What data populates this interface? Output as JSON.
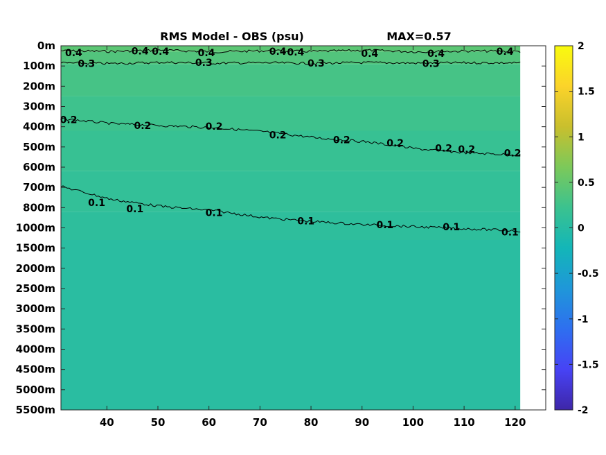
{
  "chart_data": {
    "type": "heatmap",
    "title": "RMS Model - OBS (psu)",
    "annotation": "MAX=0.57",
    "x_ticks": [
      "40",
      "50",
      "60",
      "70",
      "80",
      "90",
      "100",
      "110",
      "120"
    ],
    "x_tick_values": [
      40,
      50,
      60,
      70,
      80,
      90,
      100,
      110,
      120
    ],
    "xlim": [
      31,
      126
    ],
    "data_xmax": 121,
    "y_ticks": [
      "0m",
      "100m",
      "200m",
      "300m",
      "400m",
      "500m",
      "600m",
      "700m",
      "800m",
      "1000m",
      "1500m",
      "2000m",
      "2500m",
      "3000m",
      "3500m",
      "4000m",
      "4500m",
      "5000m",
      "5500m"
    ],
    "colorbar": {
      "ticks": [
        "2",
        "1.5",
        "1",
        "0.5",
        "0",
        "-0.5",
        "-1",
        "-1.5",
        "-2"
      ],
      "tick_values": [
        2,
        1.5,
        1,
        0.5,
        0,
        -0.5,
        -1,
        -1.5,
        -2
      ],
      "range": [
        -2,
        2
      ],
      "colormap": "parula",
      "colors": [
        "#3e26a8",
        "#4743f5",
        "#2e6ff0",
        "#1f97d9",
        "#13b6b8",
        "#3bc28f",
        "#7cc95a",
        "#c9bf2d",
        "#fbd32a",
        "#f9fb0e"
      ]
    },
    "contours": [
      {
        "level": 0.4,
        "depth_index": [
          0.25,
          0.28,
          0.22,
          0.3,
          0.25,
          0.28,
          0.22,
          0.3,
          0.26,
          0.28
        ],
        "x": [
          31,
          41,
          51,
          61,
          71,
          81,
          91,
          101,
          111,
          121
        ],
        "labels": [
          {
            "text": "0.4",
            "x": 33.5,
            "depth_index": 0.35
          },
          {
            "text": "0.4",
            "x": 46.5,
            "depth_index": 0.25
          },
          {
            "text": "0.4",
            "x": 50.5,
            "depth_index": 0.28
          },
          {
            "text": "0.4",
            "x": 59.5,
            "depth_index": 0.35
          },
          {
            "text": "0.4",
            "x": 73.5,
            "depth_index": 0.28
          },
          {
            "text": "0.4",
            "x": 77,
            "depth_index": 0.3
          },
          {
            "text": "0.4",
            "x": 91.5,
            "depth_index": 0.38
          },
          {
            "text": "0.4",
            "x": 104.5,
            "depth_index": 0.38
          },
          {
            "text": "0.4",
            "x": 118,
            "depth_index": 0.28
          }
        ]
      },
      {
        "level": 0.3,
        "depth_index": [
          0.85,
          0.88,
          0.82,
          0.86,
          0.84,
          0.87,
          0.83,
          0.86,
          0.84,
          0.85
        ],
        "x": [
          31,
          41,
          51,
          61,
          71,
          81,
          91,
          101,
          111,
          121
        ],
        "labels": [
          {
            "text": "0.3",
            "x": 36,
            "depth_index": 0.88
          },
          {
            "text": "0.3",
            "x": 59,
            "depth_index": 0.82
          },
          {
            "text": "0.3",
            "x": 81,
            "depth_index": 0.85
          },
          {
            "text": "0.3",
            "x": 103.5,
            "depth_index": 0.87
          }
        ]
      },
      {
        "level": 0.2,
        "depth_index": [
          3.6,
          3.85,
          3.95,
          4.05,
          4.25,
          4.55,
          4.75,
          5.1,
          5.3,
          5.4
        ],
        "x": [
          31,
          41,
          51,
          61,
          71,
          81,
          91,
          101,
          111,
          121
        ],
        "labels": [
          {
            "text": "0.2",
            "x": 32.5,
            "depth_index": 3.65
          },
          {
            "text": "0.2",
            "x": 47,
            "depth_index": 3.95
          },
          {
            "text": "0.2",
            "x": 61,
            "depth_index": 3.97
          },
          {
            "text": "0.2",
            "x": 73.5,
            "depth_index": 4.4
          },
          {
            "text": "0.2",
            "x": 86,
            "depth_index": 4.65
          },
          {
            "text": "0.2",
            "x": 96.5,
            "depth_index": 4.8
          },
          {
            "text": "0.2",
            "x": 106,
            "depth_index": 5.05
          },
          {
            "text": "0.2",
            "x": 110.5,
            "depth_index": 5.1
          },
          {
            "text": "0.2",
            "x": 119.5,
            "depth_index": 5.3
          }
        ]
      },
      {
        "level": 0.1,
        "depth_index": [
          6.95,
          7.6,
          7.95,
          8.15,
          8.5,
          8.7,
          8.85,
          8.95,
          9.05,
          9.15
        ],
        "x": [
          31,
          41,
          51,
          61,
          71,
          81,
          91,
          101,
          111,
          121
        ],
        "labels": [
          {
            "text": "0.1",
            "x": 38,
            "depth_index": 7.75
          },
          {
            "text": "0.1",
            "x": 45.5,
            "depth_index": 8.05
          },
          {
            "text": "0.1",
            "x": 61,
            "depth_index": 8.25
          },
          {
            "text": "0.1",
            "x": 79,
            "depth_index": 8.65
          },
          {
            "text": "0.1",
            "x": 94.5,
            "depth_index": 8.85
          },
          {
            "text": "0.1",
            "x": 107.5,
            "depth_index": 8.95
          },
          {
            "text": "0.1",
            "x": 119,
            "depth_index": 9.2
          }
        ]
      }
    ],
    "field_bands": [
      {
        "from": 0,
        "to": 0.3,
        "value": 0.45
      },
      {
        "from": 0.3,
        "to": 0.9,
        "value": 0.38
      },
      {
        "from": 0.9,
        "to": 2.5,
        "value": 0.3
      },
      {
        "from": 2.5,
        "to": 4.2,
        "value": 0.24
      },
      {
        "from": 4.2,
        "to": 6.2,
        "value": 0.18
      },
      {
        "from": 6.2,
        "to": 8.2,
        "value": 0.13
      },
      {
        "from": 8.2,
        "to": 9.6,
        "value": 0.08
      },
      {
        "from": 9.6,
        "to": 18,
        "value": 0.03
      }
    ]
  }
}
